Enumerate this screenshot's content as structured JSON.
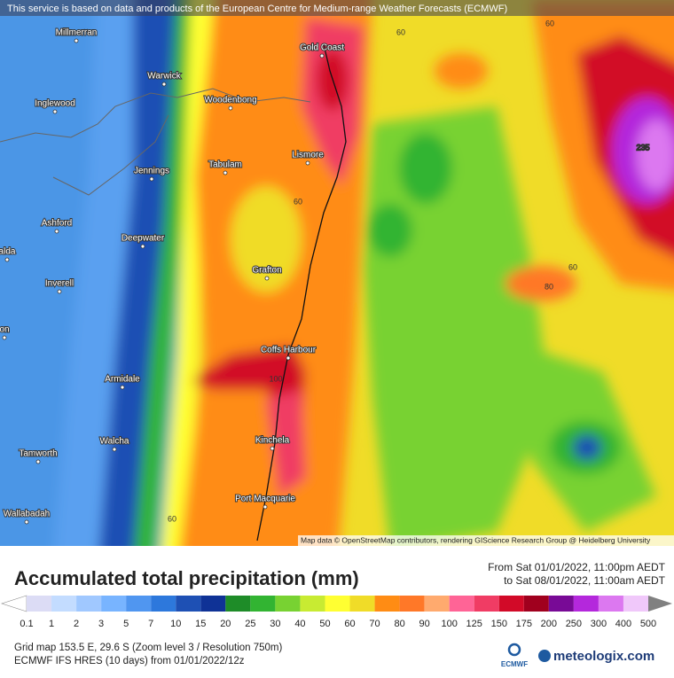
{
  "notice": "This service is based on data and products of the European Centre for Medium-range Weather Forecasts (ECMWF)",
  "map": {
    "places": [
      "Millmerran",
      "Warwick",
      "Woodenbong",
      "Inglewood",
      "Gold Coast",
      "Lismore",
      "Tabulam",
      "Jennings",
      "Ashford",
      "Deepwater",
      "alda",
      "Grafton",
      "Inverell",
      "on",
      "Coffs Harbour",
      "Armidale",
      "Walcha",
      "Kinchela",
      "Tamworth",
      "Port Macquarie",
      "Wallabadah"
    ],
    "contour_labels": [
      60,
      60,
      235,
      60,
      60,
      80,
      100,
      60
    ],
    "attribution": "Map data © OpenStreetMap contributors, rendering GIScience Research Group @ Heidelberg University"
  },
  "legend": {
    "title": "Accumulated total precipitation (mm)",
    "from": "From Sat 01/01/2022, 11:00pm AEDT",
    "to": "to Sat 08/01/2022, 11:00am AEDT",
    "classes": [
      {
        "value": 0.1,
        "color": "#dcdcf5"
      },
      {
        "value": 1,
        "color": "#c3dcff"
      },
      {
        "value": 2,
        "color": "#a0c8ff"
      },
      {
        "value": 3,
        "color": "#78b4ff"
      },
      {
        "value": 5,
        "color": "#5096f0"
      },
      {
        "value": 7,
        "color": "#2d78dc"
      },
      {
        "value": 10,
        "color": "#1e50b4"
      },
      {
        "value": 15,
        "color": "#0f3296"
      },
      {
        "value": 20,
        "color": "#1e8c28"
      },
      {
        "value": 25,
        "color": "#32b432"
      },
      {
        "value": 30,
        "color": "#78d232"
      },
      {
        "value": 40,
        "color": "#c8eb32"
      },
      {
        "value": 50,
        "color": "#ffff32"
      },
      {
        "value": 60,
        "color": "#f0dc28"
      },
      {
        "value": 70,
        "color": "#ff8c14"
      },
      {
        "value": 80,
        "color": "#ff7828"
      },
      {
        "value": 90,
        "color": "#ffaa6e"
      },
      {
        "value": 100,
        "color": "#ff6496"
      },
      {
        "value": 125,
        "color": "#f03c64"
      },
      {
        "value": 150,
        "color": "#d20a28"
      },
      {
        "value": 175,
        "color": "#a0001e"
      },
      {
        "value": 200,
        "color": "#780a96"
      },
      {
        "value": 250,
        "color": "#b428dc"
      },
      {
        "value": 300,
        "color": "#dc78f0"
      },
      {
        "value": 400,
        "color": "#f0c8fa"
      },
      {
        "value": 500,
        "color": "#d2d2d2"
      }
    ]
  },
  "footer": {
    "grid": "Grid map 153.5 E, 29.6 S (Zoom level 3 / Resolution 750m)",
    "model": "ECMWF IFS HRES (10 days) from 01/01/2022/12z",
    "ecmwf": "ECMWF",
    "brand": "meteologix.com"
  }
}
